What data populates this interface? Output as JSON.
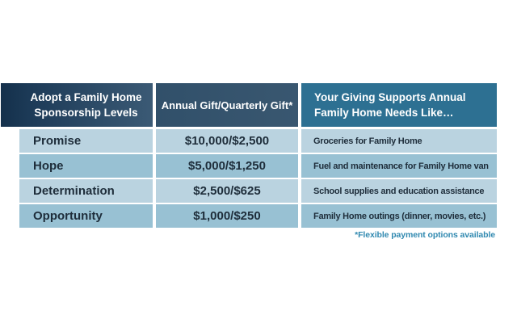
{
  "table": {
    "headers": {
      "sponsorship": "Adopt a Family Home\nSponsorship Levels",
      "gift": "Annual Gift/Quarterly Gift*",
      "support": "Your Giving Supports Annual\nFamily Home Needs Like…"
    },
    "rows": [
      {
        "level": "Promise",
        "gift": "$10,000/$2,500",
        "support": "Groceries for Family Home"
      },
      {
        "level": "Hope",
        "gift": "$5,000/$1,250",
        "support": "Fuel and maintenance for Family Home van"
      },
      {
        "level": "Determination",
        "gift": "$2,500/$625",
        "support": "School supplies and education assistance"
      },
      {
        "level": "Opportunity",
        "gift": "$1,000/$250",
        "support": "Family Home outings (dinner, movies, etc.)"
      }
    ],
    "footnote": "*Flexible payment options available"
  },
  "chart_data": {
    "type": "table",
    "title": "Adopt a Family Home Sponsorship Levels",
    "columns": [
      "Adopt a Family Home Sponsorship Levels",
      "Annual Gift/Quarterly Gift*",
      "Your Giving Supports Annual Family Home Needs Like…"
    ],
    "rows": [
      [
        "Promise",
        "$10,000/$2,500",
        "Groceries for Family Home"
      ],
      [
        "Hope",
        "$5,000/$1,250",
        "Fuel and maintenance for Family Home van"
      ],
      [
        "Determination",
        "$2,500/$625",
        "School supplies and education assistance"
      ],
      [
        "Opportunity",
        "$1,000/$250",
        "Family Home outings (dinner, movies, etc.)"
      ]
    ],
    "annual_gift_values": [
      10000,
      5000,
      2500,
      1000
    ],
    "quarterly_gift_values": [
      2500,
      1250,
      625,
      250
    ],
    "footnote": "*Flexible payment options available"
  },
  "colors": {
    "header_dark_navy": "#14304b",
    "header_slate": "#3b5a75",
    "header_col2": "#395770",
    "header_teal": "#2d7092",
    "row_light": "#bad3e0",
    "row_dark": "#98c1d3",
    "body_text": "#1e2d3a",
    "footnote_text": "#3089b0"
  }
}
